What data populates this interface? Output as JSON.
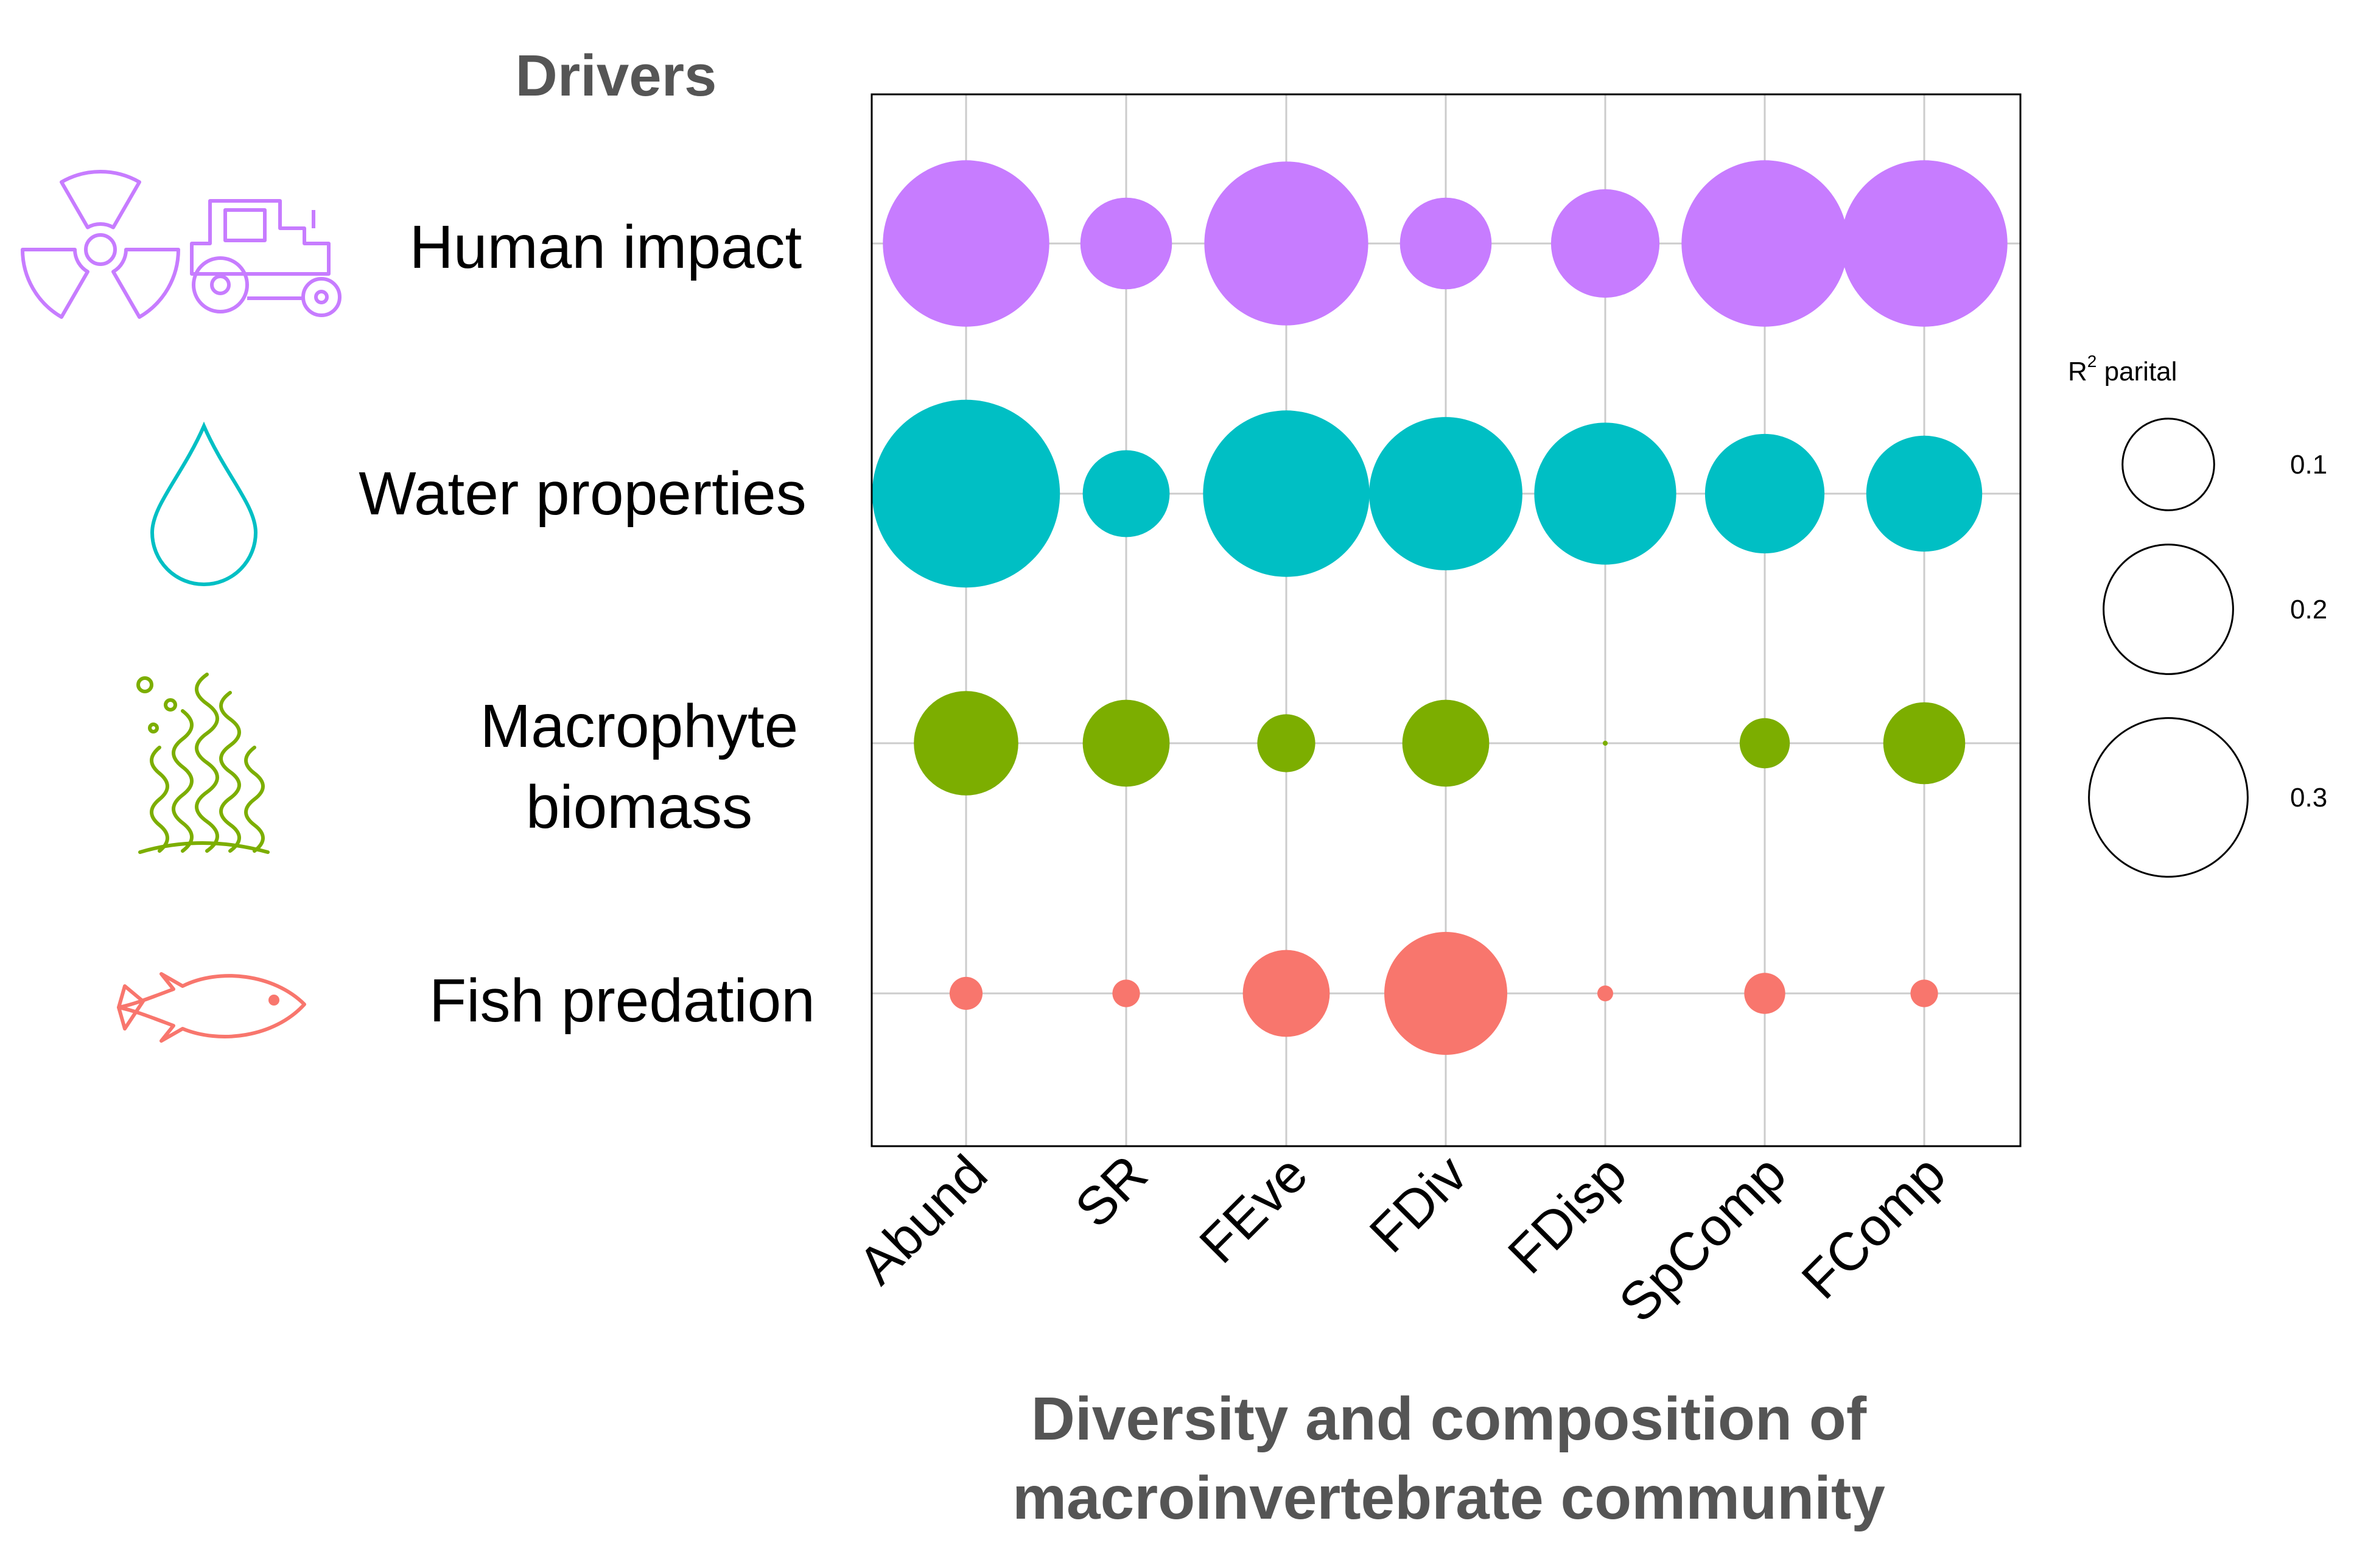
{
  "drivers_heading": "Drivers",
  "chart_data": {
    "type": "bubble",
    "xlabel_lines": [
      "Diversity and composition of",
      "macroinvertebrate community"
    ],
    "categories": [
      "Abund",
      "SR",
      "FEve",
      "FDiv",
      "FDisp",
      "SpComp",
      "FComp"
    ],
    "grid": true,
    "series": [
      {
        "label_lines": [
          "Human impact"
        ],
        "icon": "radiation-tractor-icon",
        "color": "#C77CFF",
        "values": [
          0.33,
          0.1,
          0.32,
          0.1,
          0.14,
          0.33,
          0.33
        ]
      },
      {
        "label_lines": [
          "Water properties"
        ],
        "icon": "water-drop-icon",
        "color": "#00BFC4",
        "values": [
          0.42,
          0.09,
          0.33,
          0.28,
          0.24,
          0.17,
          0.16
        ]
      },
      {
        "label_lines": [
          "Macrophyte",
          "biomass"
        ],
        "icon": "seaweed-icon",
        "color": "#7CAE00",
        "values": [
          0.13,
          0.09,
          0.04,
          0.09,
          0.0003,
          0.03,
          0.08
        ]
      },
      {
        "label_lines": [
          "Fish predation"
        ],
        "icon": "fish-icon",
        "color": "#F8766D",
        "values": [
          0.013,
          0.009,
          0.09,
          0.18,
          0.003,
          0.02,
          0.009
        ]
      }
    ],
    "legend": {
      "title": "R",
      "title_superscript": "2",
      "title_rest": " parital",
      "placement": "right",
      "sizes": [
        0.1,
        0.2,
        0.3
      ],
      "size_labels": [
        "0.1",
        "0.2",
        "0.3"
      ]
    }
  }
}
